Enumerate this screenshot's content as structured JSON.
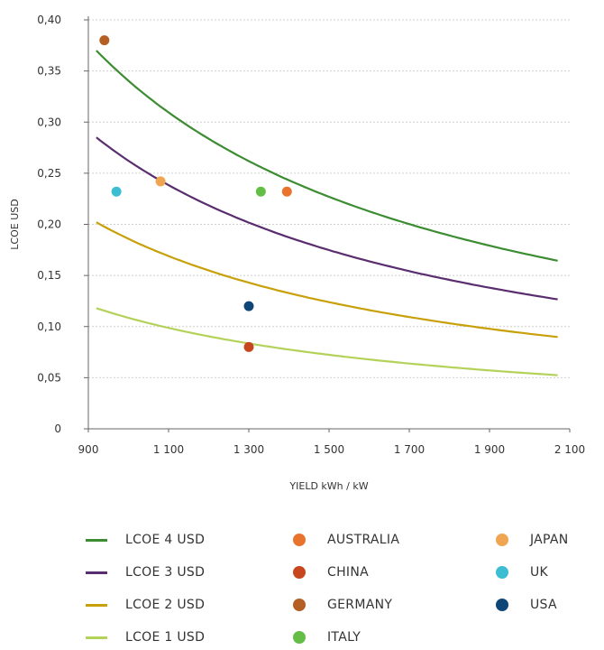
{
  "chart_data": {
    "type": "line",
    "xlabel": "YIELD kWh / kW",
    "ylabel": "LCOE USD",
    "xlim": [
      900,
      2100
    ],
    "ylim": [
      0,
      0.4
    ],
    "x_ticks": [
      900,
      1100,
      1300,
      1500,
      1700,
      1900,
      2100
    ],
    "x_tick_labels": [
      "900",
      "1 100",
      "1 300",
      "1 500",
      "1 700",
      "1 900",
      "2 100"
    ],
    "y_ticks": [
      0,
      0.05,
      0.1,
      0.15,
      0.2,
      0.25,
      0.3,
      0.35,
      0.4
    ],
    "y_tick_labels": [
      "0",
      "0,05",
      "0,10",
      "0,15",
      "0,20",
      "0,25",
      "0,30",
      "0,35",
      "0,40"
    ],
    "grid": "horizontal dotted",
    "legend_position": "bottom",
    "lines": [
      {
        "name": "LCOE 4 USD",
        "color": "#3c8c32",
        "x_range": [
          920,
          2070
        ],
        "y_at_920": 0.37
      },
      {
        "name": "LCOE 3 USD",
        "color": "#5a2d6e",
        "x_range": [
          920,
          2070
        ],
        "y_at_920": 0.285
      },
      {
        "name": "LCOE 2 USD",
        "color": "#c8a00a",
        "x_range": [
          920,
          2070
        ],
        "y_at_920": 0.202
      },
      {
        "name": "LCOE 1 USD",
        "color": "#b4d25a",
        "x_range": [
          920,
          2070
        ],
        "y_at_920": 0.118
      }
    ],
    "points": [
      {
        "name": "AUSTRALIA",
        "color": "#e8732d",
        "x": 1395,
        "y": 0.232
      },
      {
        "name": "CHINA",
        "color": "#c8461e",
        "x": 1300,
        "y": 0.08
      },
      {
        "name": "GERMANY",
        "color": "#b45f23",
        "x": 940,
        "y": 0.38
      },
      {
        "name": "ITALY",
        "color": "#64be46",
        "x": 1330,
        "y": 0.232
      },
      {
        "name": "JAPAN",
        "color": "#f0a550",
        "x": 1080,
        "y": 0.242
      },
      {
        "name": "UK",
        "color": "#3cbed2",
        "x": 970,
        "y": 0.232
      },
      {
        "name": "USA",
        "color": "#0f4678",
        "x": 1300,
        "y": 0.12
      }
    ]
  },
  "legend": {
    "col1": [
      "LCOE 4 USD",
      "LCOE 3 USD",
      "LCOE 2 USD",
      "LCOE 1 USD"
    ],
    "col2": [
      "AUSTRALIA",
      "CHINA",
      "GERMANY",
      "ITALY"
    ],
    "col3": [
      "JAPAN",
      "UK",
      "USA"
    ]
  }
}
